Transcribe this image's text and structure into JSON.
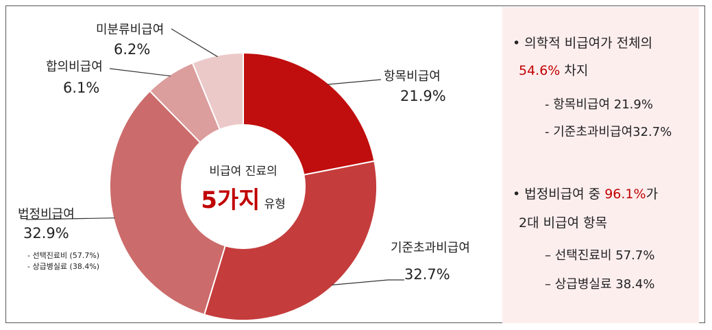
{
  "chart_data": {
    "type": "pie",
    "center_label": {
      "top": "비급여 진료의",
      "big": "5가지",
      "small": "유형"
    },
    "slices": [
      {
        "name": "항목비급여",
        "value": 21.9,
        "value_label": "21.9%",
        "color": "#c00d0d"
      },
      {
        "name": "기준초과비급여",
        "value": 32.7,
        "value_label": "32.7%",
        "color": "#c53c3c"
      },
      {
        "name": "법정비급여",
        "value": 32.9,
        "value_label": "32.9%",
        "color": "#cc6b6b",
        "sub_items": [
          "- 선택진료비 (57.7%)",
          "- 상급병실료 (38.4%)"
        ]
      },
      {
        "name": "합의비급여",
        "value": 6.1,
        "value_label": "6.1%",
        "color": "#dc9d9d"
      },
      {
        "name": "미분류비급여",
        "value": 6.2,
        "value_label": "6.2%",
        "color": "#ecc9c9"
      }
    ]
  },
  "panel": {
    "bullet1": {
      "line1": "• 의학적 비급여가 전체의",
      "highlight": "54.6%",
      "line2_rest": " 차지",
      "subs": [
        "- 항목비급여 21.9%",
        "- 기준초과비급여32.7%"
      ]
    },
    "bullet2": {
      "line1_prefix": "• 법정비급여 중 ",
      "highlight": "96.1%",
      "line1_suffix": "가",
      "line2": "2대 비급여 항목",
      "subs": [
        "–  선택진료비 57.7%",
        "–  상급병실료 38.4%"
      ]
    }
  }
}
